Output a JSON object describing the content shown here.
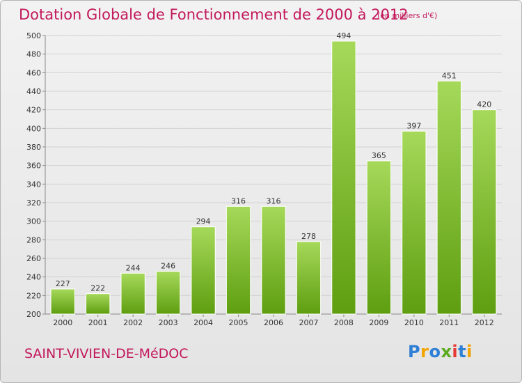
{
  "title": "Dotation Globale de Fonctionnement de 2000 à 2012",
  "subtitle": "(en milliers d'€)",
  "town": "SAINT-VIVIEN-DE-MéDOC",
  "logo": {
    "text": "Proxiti",
    "letter_colors": [
      "#2e7fd6",
      "#f2a400",
      "#2e7fd6",
      "#5aaa1e",
      "#e53935",
      "#2e7fd6",
      "#f2a400"
    ]
  },
  "colors": {
    "bar_top": "#a6d95a",
    "bar_bottom": "#5e9e10",
    "accent": "#c2185b"
  },
  "chart_data": {
    "type": "bar",
    "title": "Dotation Globale de Fonctionnement de 2000 à 2012",
    "subtitle": "(en milliers d'€)",
    "categories": [
      "2000",
      "2001",
      "2002",
      "2003",
      "2004",
      "2005",
      "2006",
      "2007",
      "2008",
      "2009",
      "2010",
      "2011",
      "2012"
    ],
    "values": [
      227,
      222,
      244,
      246,
      294,
      316,
      316,
      278,
      494,
      365,
      397,
      451,
      420
    ],
    "xlabel": "",
    "ylabel": "",
    "ylim": [
      200,
      500
    ],
    "yticks": [
      200,
      220,
      240,
      260,
      280,
      300,
      320,
      340,
      360,
      380,
      400,
      420,
      440,
      460,
      480,
      500
    ],
    "grid": true,
    "legend": "none"
  }
}
